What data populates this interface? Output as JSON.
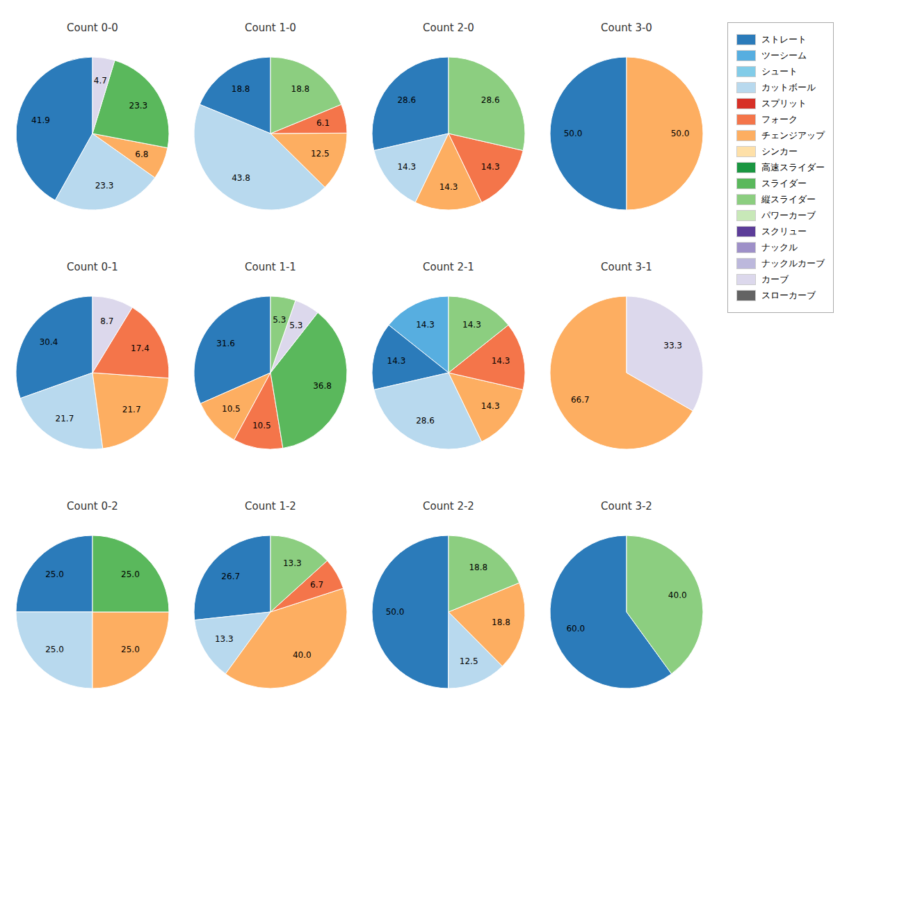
{
  "chart_data": [
    {
      "type": "pie",
      "title": "Count 0-0",
      "categories": [
        "ストレート",
        "カットボール",
        "チェンジアップ",
        "スライダー",
        "カーブ"
      ],
      "values": [
        41.9,
        23.3,
        6.8,
        23.3,
        4.7
      ],
      "value_labels": [
        "41.9",
        "23.3",
        "6.8",
        "23.3",
        "4.7"
      ],
      "colors": [
        "#2b7bba",
        "#b8d9ee",
        "#fdae61",
        "#5ab85c",
        "#dcd8ec"
      ],
      "data_labels": true
    },
    {
      "type": "pie",
      "title": "Count 1-0",
      "categories": [
        "ストレート",
        "カットボール",
        "チェンジアップ",
        "フォーク",
        "縦スライダー"
      ],
      "values": [
        18.8,
        43.8,
        12.5,
        6.1,
        18.8
      ],
      "value_labels": [
        "18.8",
        "43.8",
        "12.5",
        "6.1",
        "18.8"
      ],
      "colors": [
        "#2b7bba",
        "#b8d9ee",
        "#fdae61",
        "#f4754a",
        "#8cce80"
      ],
      "data_labels": true
    },
    {
      "type": "pie",
      "title": "Count 2-0",
      "categories": [
        "ストレート",
        "カットボール",
        "チェンジアップ",
        "フォーク",
        "縦スライダー"
      ],
      "values": [
        28.6,
        14.3,
        14.3,
        14.3,
        28.6
      ],
      "value_labels": [
        "28.6",
        "14.3",
        "14.3",
        "14.3",
        "28.6"
      ],
      "colors": [
        "#2b7bba",
        "#b8d9ee",
        "#fdae61",
        "#f4754a",
        "#8cce80"
      ],
      "data_labels": true
    },
    {
      "type": "pie",
      "title": "Count 3-0",
      "categories": [
        "ストレート",
        "チェンジアップ"
      ],
      "values": [
        50.0,
        50.0
      ],
      "value_labels": [
        "50.0",
        "50.0"
      ],
      "colors": [
        "#2b7bba",
        "#fdae61"
      ],
      "data_labels": true
    },
    {
      "type": "pie",
      "title": "Count 0-1",
      "categories": [
        "ストレート",
        "カットボール",
        "チェンジアップ",
        "フォーク",
        "カーブ"
      ],
      "values": [
        30.4,
        21.7,
        21.7,
        17.4,
        8.7
      ],
      "value_labels": [
        "30.4",
        "21.7",
        "21.7",
        "17.4",
        "8.7"
      ],
      "colors": [
        "#2b7bba",
        "#b8d9ee",
        "#fdae61",
        "#f4754a",
        "#dcd8ec"
      ],
      "data_labels": true
    },
    {
      "type": "pie",
      "title": "Count 1-1",
      "categories": [
        "ストレート",
        "チェンジアップ",
        "フォーク",
        "スライダー",
        "カーブ",
        "縦スライダー"
      ],
      "values": [
        31.6,
        10.5,
        10.5,
        36.8,
        5.3,
        5.3
      ],
      "value_labels": [
        "31.6",
        "10.5",
        "10.5",
        "36.8",
        "5.3",
        "5.3"
      ],
      "colors": [
        "#2b7bba",
        "#fdae61",
        "#f4754a",
        "#5ab85c",
        "#dcd8ec",
        "#8cce80"
      ],
      "data_labels": true
    },
    {
      "type": "pie",
      "title": "Count 2-1",
      "categories": [
        "ツーシーム",
        "ストレート",
        "カットボール",
        "チェンジアップ",
        "フォーク",
        "縦スライダー"
      ],
      "values": [
        14.3,
        14.3,
        28.6,
        14.3,
        14.3,
        14.3
      ],
      "value_labels": [
        "14.3",
        "14.3",
        "28.6",
        "14.3",
        "14.3",
        "14.3"
      ],
      "colors": [
        "#57aee0",
        "#2b7bba",
        "#b8d9ee",
        "#fdae61",
        "#f4754a",
        "#8cce80"
      ],
      "data_labels": true
    },
    {
      "type": "pie",
      "title": "Count 3-1",
      "categories": [
        "チェンジアップ",
        "カーブ"
      ],
      "values": [
        66.7,
        33.3
      ],
      "value_labels": [
        "66.7",
        "33.3"
      ],
      "colors": [
        "#fdae61",
        "#dcd8ec"
      ],
      "data_labels": true
    },
    {
      "type": "pie",
      "title": "Count 0-2",
      "categories": [
        "ストレート",
        "カットボール",
        "チェンジアップ",
        "スライダー"
      ],
      "values": [
        25.0,
        25.0,
        25.0,
        25.0
      ],
      "value_labels": [
        "25.0",
        "25.0",
        "25.0",
        "25.0"
      ],
      "colors": [
        "#2b7bba",
        "#b8d9ee",
        "#fdae61",
        "#5ab85c"
      ],
      "data_labels": true
    },
    {
      "type": "pie",
      "title": "Count 1-2",
      "categories": [
        "ストレート",
        "カットボール",
        "チェンジアップ",
        "フォーク",
        "縦スライダー"
      ],
      "values": [
        26.7,
        13.3,
        40.0,
        6.7,
        13.3
      ],
      "value_labels": [
        "26.7",
        "13.3",
        "40.0",
        "6.7",
        "13.3"
      ],
      "colors": [
        "#2b7bba",
        "#b8d9ee",
        "#fdae61",
        "#f4754a",
        "#8cce80"
      ],
      "data_labels": true
    },
    {
      "type": "pie",
      "title": "Count 2-2",
      "categories": [
        "ストレート",
        "カットボール",
        "チェンジアップ",
        "縦スライダー"
      ],
      "values": [
        50.0,
        12.5,
        18.8,
        18.8
      ],
      "value_labels": [
        "50.0",
        "12.5",
        "18.8",
        "18.8"
      ],
      "colors": [
        "#2b7bba",
        "#b8d9ee",
        "#fdae61",
        "#8cce80"
      ],
      "data_labels": true
    },
    {
      "type": "pie",
      "title": "Count 3-2",
      "categories": [
        "ストレート",
        "縦スライダー"
      ],
      "values": [
        60.0,
        40.0
      ],
      "value_labels": [
        "60.0",
        "40.0"
      ],
      "colors": [
        "#2b7bba",
        "#8cce80"
      ],
      "data_labels": true
    }
  ],
  "legend": "right",
  "legend_entries": [
    {
      "name": "ストレート",
      "color": "#2b7bba"
    },
    {
      "name": "ツーシーム",
      "color": "#57aee0"
    },
    {
      "name": "シュート",
      "color": "#82cce8"
    },
    {
      "name": "カットボール",
      "color": "#b8d9ee"
    },
    {
      "name": "スプリット",
      "color": "#d73027"
    },
    {
      "name": "フォーク",
      "color": "#f4754a"
    },
    {
      "name": "チェンジアップ",
      "color": "#fdae61"
    },
    {
      "name": "シンカー",
      "color": "#fee0a8"
    },
    {
      "name": "高速スライダー",
      "color": "#1a9641"
    },
    {
      "name": "スライダー",
      "color": "#5ab85c"
    },
    {
      "name": "縦スライダー",
      "color": "#8cce80"
    },
    {
      "name": "パワーカーブ",
      "color": "#c8e8b8"
    },
    {
      "name": "スクリュー",
      "color": "#5c3d99"
    },
    {
      "name": "ナックル",
      "color": "#9e90c8"
    },
    {
      "name": "ナックルカーブ",
      "color": "#bcb8dc"
    },
    {
      "name": "カーブ",
      "color": "#dcd8ec"
    },
    {
      "name": "スローカーブ",
      "color": "#636363"
    }
  ]
}
